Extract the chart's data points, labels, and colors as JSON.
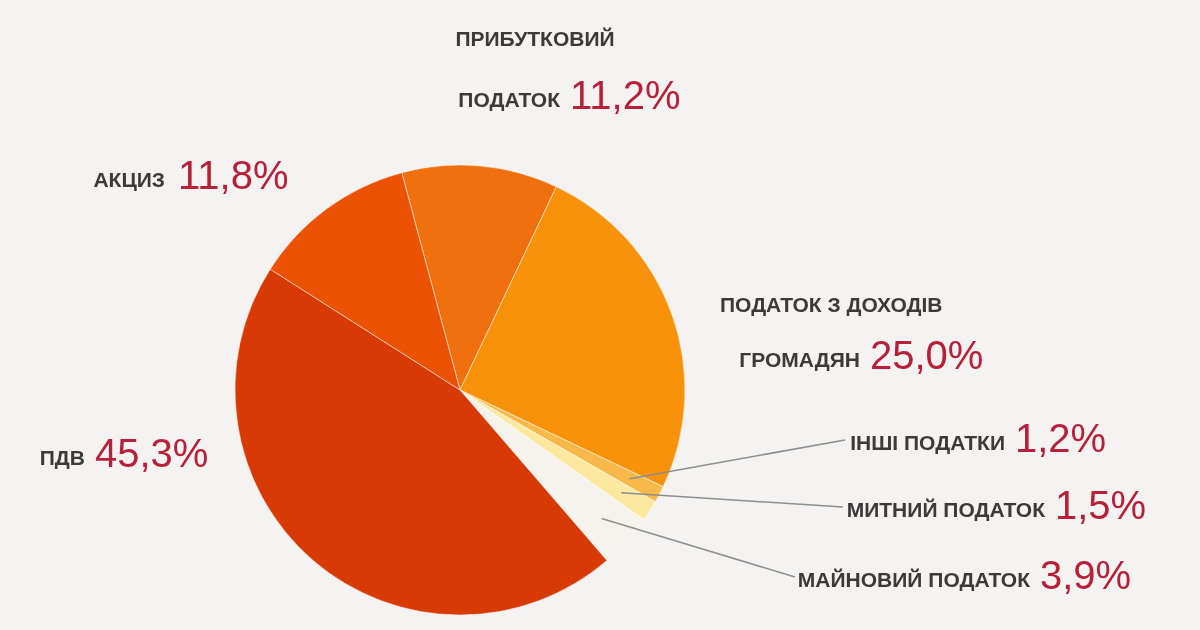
{
  "chart_data": {
    "type": "pie",
    "categories": [
      "ПРИБУТКОВИЙ ПОДАТОК",
      "ПОДАТОК З ДОХОДІВ ГРОМАДЯН",
      "ІНШІ ПОДАТКИ",
      "МИТНИЙ ПОДАТОК",
      "МАЙНОВИЙ ПОДАТОК",
      "ПДВ",
      "АКЦИЗ"
    ],
    "values": [
      11.2,
      25.0,
      1.2,
      1.5,
      3.9,
      45.3,
      11.8
    ],
    "value_labels": [
      "11,2%",
      "25,0%",
      "1,2%",
      "1,5%",
      "3,9%",
      "45,3%",
      "11,8%"
    ],
    "colors": [
      "#f07010",
      "#f7920a",
      "#f9b84a",
      "#fde8a0",
      "#f6f2ec",
      "#d83a06",
      "#ec5204"
    ]
  }
}
